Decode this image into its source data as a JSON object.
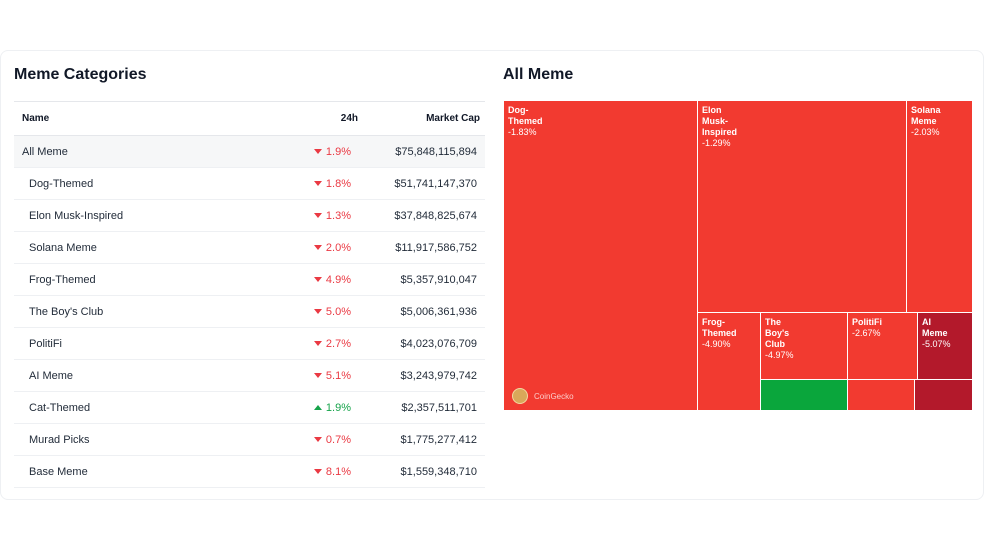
{
  "left": {
    "title": "Meme Categories",
    "headers": {
      "name": "Name",
      "change": "24h",
      "cap": "Market Cap"
    },
    "rows": [
      {
        "name": "All Meme",
        "change": "1.9%",
        "dir": "down",
        "cap": "$75,848,115,894"
      },
      {
        "name": "Dog-Themed",
        "change": "1.8%",
        "dir": "down",
        "cap": "$51,741,147,370"
      },
      {
        "name": "Elon Musk-Inspired",
        "change": "1.3%",
        "dir": "down",
        "cap": "$37,848,825,674"
      },
      {
        "name": "Solana Meme",
        "change": "2.0%",
        "dir": "down",
        "cap": "$11,917,586,752"
      },
      {
        "name": "Frog-Themed",
        "change": "4.9%",
        "dir": "down",
        "cap": "$5,357,910,047"
      },
      {
        "name": "The Boy's Club",
        "change": "5.0%",
        "dir": "down",
        "cap": "$5,006,361,936"
      },
      {
        "name": "PolitiFi",
        "change": "2.7%",
        "dir": "down",
        "cap": "$4,023,076,709"
      },
      {
        "name": "AI Meme",
        "change": "5.1%",
        "dir": "down",
        "cap": "$3,243,979,742"
      },
      {
        "name": "Cat-Themed",
        "change": "1.9%",
        "dir": "up",
        "cap": "$2,357,511,701"
      },
      {
        "name": "Murad Picks",
        "change": "0.7%",
        "dir": "down",
        "cap": "$1,775,277,412"
      },
      {
        "name": "Base Meme",
        "change": "8.1%",
        "dir": "down",
        "cap": "$1,559,348,710"
      }
    ]
  },
  "right": {
    "title": "All Meme",
    "watermark": "CoinGecko",
    "colors": {
      "red": "#f23a30",
      "darkred": "#b3192b",
      "green": "#0aa63c"
    },
    "tiles": [
      {
        "id": "dog",
        "name": "Dog-\nThemed",
        "value": "-1.83%",
        "color": "red"
      },
      {
        "id": "elon",
        "name": "Elon\nMusk-\nInspired",
        "value": "-1.29%",
        "color": "red"
      },
      {
        "id": "solana",
        "name": "Solana\nMeme",
        "value": "-2.03%",
        "color": "red"
      },
      {
        "id": "frog",
        "name": "Frog-\nThemed",
        "value": "-4.90%",
        "color": "red"
      },
      {
        "id": "boys",
        "name": "The\nBoy's\nClub",
        "value": "-4.97%",
        "color": "red"
      },
      {
        "id": "politifi",
        "name": "PolitiFi",
        "value": "-2.67%",
        "color": "red"
      },
      {
        "id": "ai",
        "name": "AI\nMeme",
        "value": "-5.07%",
        "color": "darkred"
      },
      {
        "id": "cat",
        "name": "",
        "value": "",
        "color": "green"
      },
      {
        "id": "murad",
        "name": "",
        "value": "",
        "color": "red"
      },
      {
        "id": "base",
        "name": "",
        "value": "",
        "color": "darkred"
      }
    ]
  }
}
